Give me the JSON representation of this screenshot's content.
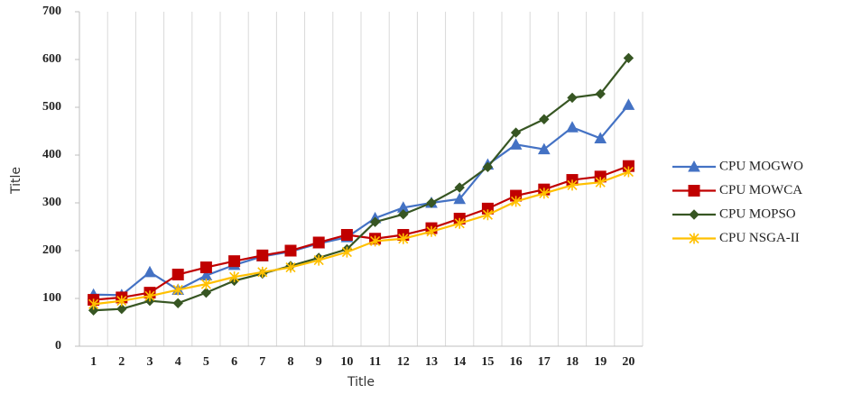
{
  "chart_data": {
    "type": "line",
    "x_label": "Title",
    "y_label": "Title",
    "categories": [
      "1",
      "2",
      "3",
      "4",
      "5",
      "6",
      "7",
      "8",
      "9",
      "10",
      "11",
      "12",
      "13",
      "14",
      "15",
      "16",
      "17",
      "18",
      "19",
      "20"
    ],
    "ylim": [
      0,
      700
    ],
    "yticks": [
      0,
      100,
      200,
      300,
      400,
      500,
      600,
      700
    ],
    "grid": true,
    "legend": "right",
    "series": [
      {
        "name": "CPU MOGWO",
        "color": "#4472c4",
        "marker": "triangle",
        "values": [
          108,
          107,
          155,
          118,
          148,
          170,
          188,
          198,
          215,
          228,
          268,
          290,
          300,
          308,
          380,
          422,
          412,
          458,
          435,
          505
        ]
      },
      {
        "name": "CPU MOWCA",
        "color": "#c00000",
        "marker": "square",
        "values": [
          97,
          102,
          112,
          150,
          165,
          178,
          190,
          200,
          217,
          233,
          225,
          233,
          247,
          267,
          288,
          315,
          328,
          348,
          355,
          377
        ]
      },
      {
        "name": "CPU MOPSO",
        "color": "#375623",
        "marker": "diamond",
        "values": [
          75,
          78,
          95,
          90,
          112,
          137,
          152,
          168,
          185,
          203,
          260,
          276,
          300,
          332,
          375,
          447,
          475,
          520,
          528,
          603
        ]
      },
      {
        "name": "CPU NSGA-II",
        "color": "#ffc000",
        "marker": "star",
        "values": [
          88,
          95,
          105,
          118,
          130,
          145,
          155,
          165,
          180,
          197,
          220,
          225,
          240,
          257,
          275,
          303,
          320,
          337,
          343,
          365
        ]
      }
    ]
  }
}
